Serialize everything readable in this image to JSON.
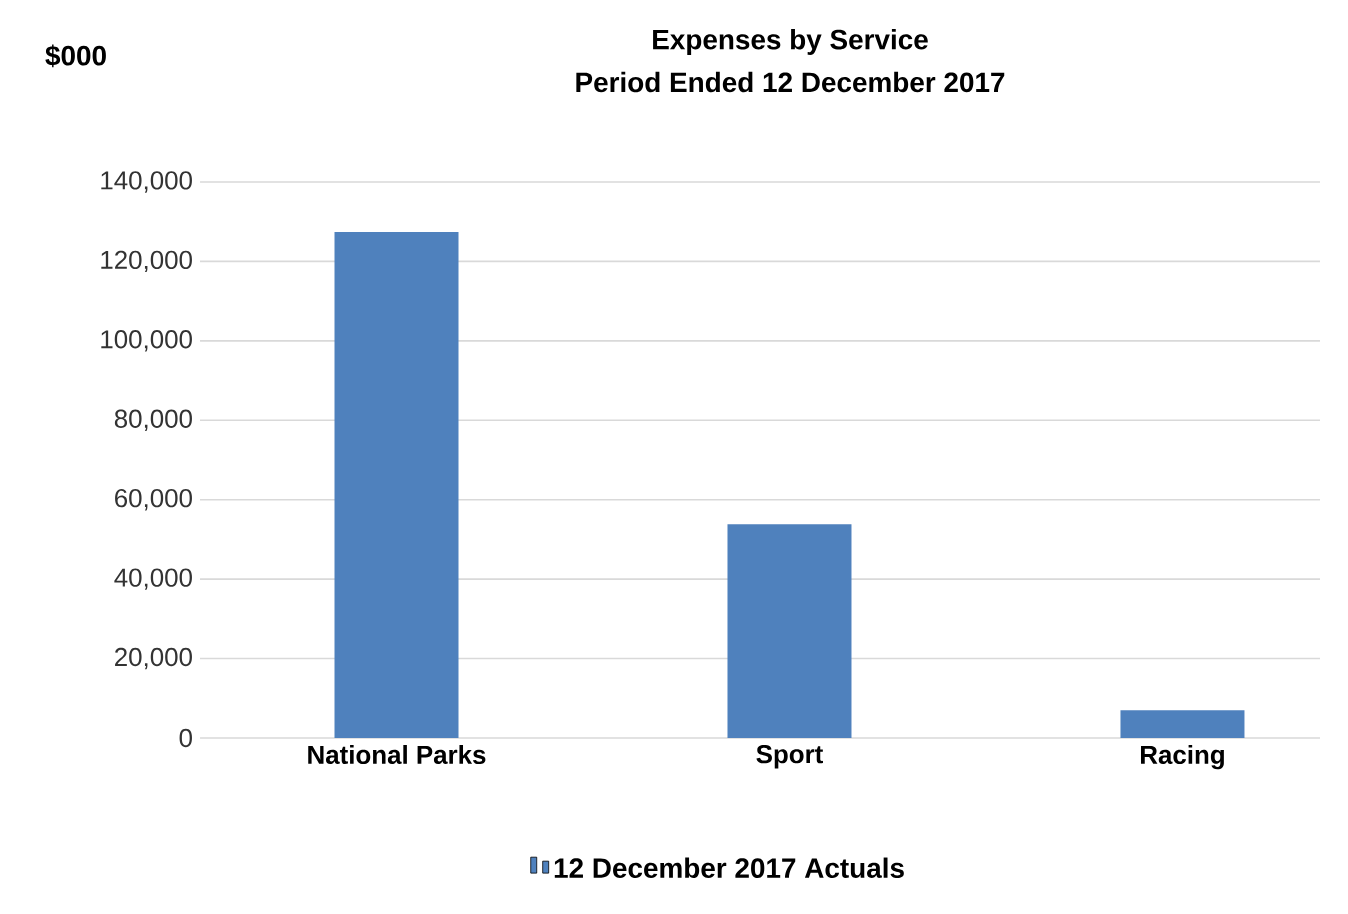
{
  "chart_data": {
    "type": "bar",
    "title": "Expenses by Service",
    "subtitle": "Period Ended 12 December 2017",
    "ylabel": "$000",
    "categories": [
      "National Parks",
      "Sport",
      "Racing"
    ],
    "series": [
      {
        "name": "12 December 2017 Actuals",
        "color": "#4f81bd",
        "values": [
          127400,
          53800,
          7000
        ]
      }
    ],
    "ylim": [
      0,
      140000
    ],
    "yticks": [
      {
        "value": 0,
        "label": "0"
      },
      {
        "value": 20000,
        "label": "20,000"
      },
      {
        "value": 40000,
        "label": "40,000"
      },
      {
        "value": 60000,
        "label": "60,000"
      },
      {
        "value": 80000,
        "label": "80,000"
      },
      {
        "value": 100000,
        "label": "100,000"
      },
      {
        "value": 120000,
        "label": "120,000"
      },
      {
        "value": 140000,
        "label": "140,000"
      }
    ],
    "grid": "y",
    "legend": "bottom"
  }
}
